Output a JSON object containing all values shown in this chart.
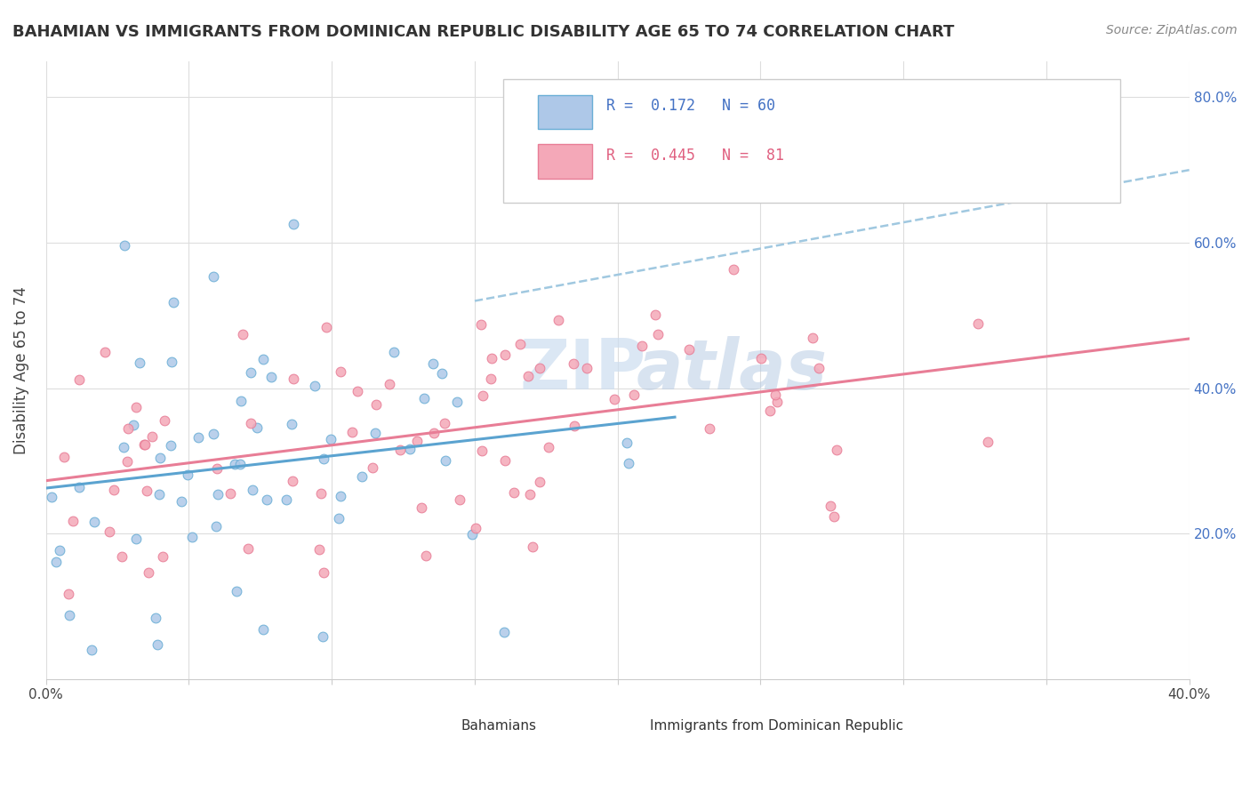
{
  "title": "BAHAMIAN VS IMMIGRANTS FROM DOMINICAN REPUBLIC DISABILITY AGE 65 TO 74 CORRELATION CHART",
  "source": "Source: ZipAtlas.com",
  "ylabel": "Disability Age 65 to 74",
  "xlim": [
    0.0,
    0.4
  ],
  "ylim": [
    0.0,
    0.85
  ],
  "xticks": [
    0.0,
    0.05,
    0.1,
    0.15,
    0.2,
    0.25,
    0.3,
    0.35,
    0.4
  ],
  "xtick_labels": [
    "0.0%",
    "",
    "",
    "",
    "",
    "",
    "",
    "",
    "40.0%"
  ],
  "yticks": [
    0.2,
    0.4,
    0.6,
    0.8
  ],
  "ytick_labels": [
    "20.0%",
    "40.0%",
    "60.0%",
    "80.0%"
  ],
  "legend_r1": "R =  0.172",
  "legend_n1": "N = 60",
  "legend_r2": "R =  0.445",
  "legend_n2": "N =  81",
  "color_blue": "#6aaed6",
  "color_blue_light": "#aec8e8",
  "color_pink": "#f4a8b8",
  "color_pink_dark": "#e87d96",
  "trendline_blue": "#5ba3d0",
  "trendline_pink": "#e87d96",
  "trendline_blue_dashed_color": "#a0c8e0",
  "bg_color": "#ffffff",
  "grid_color": "#dddddd",
  "watermark_zip_color": "#ccddf0",
  "watermark_atlas_color": "#b8cce4"
}
